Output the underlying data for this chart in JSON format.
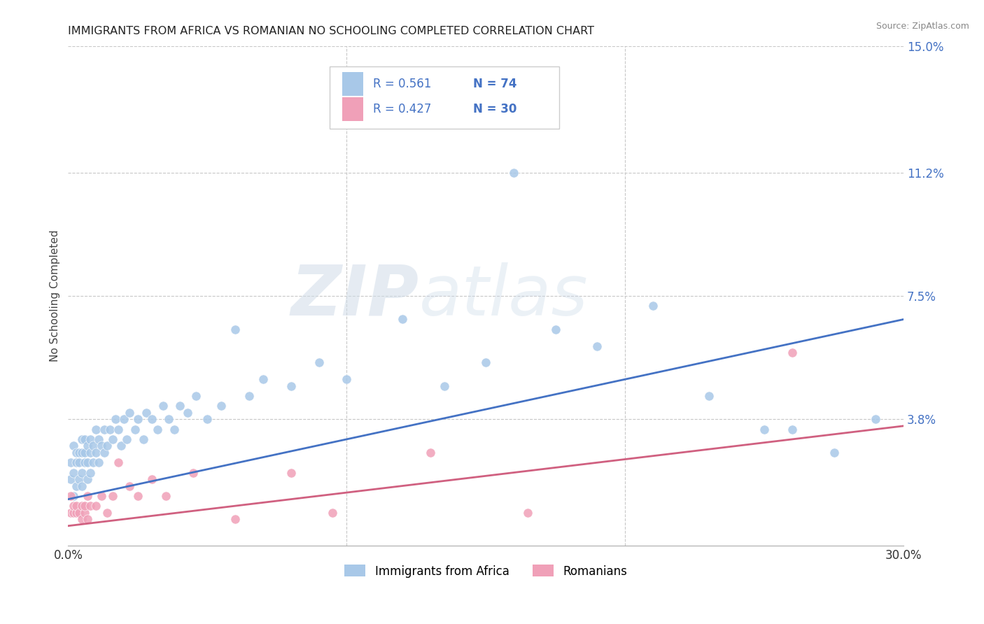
{
  "title": "IMMIGRANTS FROM AFRICA VS ROMANIAN NO SCHOOLING COMPLETED CORRELATION CHART",
  "source": "Source: ZipAtlas.com",
  "ylabel": "No Schooling Completed",
  "xlim": [
    0.0,
    0.3
  ],
  "ylim": [
    0.0,
    0.15
  ],
  "ytick_labels_right": [
    "15.0%",
    "11.2%",
    "7.5%",
    "3.8%"
  ],
  "ytick_positions_right": [
    0.15,
    0.112,
    0.075,
    0.038
  ],
  "grid_color": "#c8c8c8",
  "background_color": "#ffffff",
  "legend_r1": "R = 0.561",
  "legend_n1": "N = 74",
  "legend_r2": "R = 0.427",
  "legend_n2": "N = 30",
  "color_africa": "#a8c8e8",
  "color_romania": "#f0a0b8",
  "color_africa_line": "#4472c4",
  "color_romania_line": "#d06080",
  "color_blue": "#4472c4",
  "color_pink": "#e05878",
  "africa_x": [
    0.001,
    0.001,
    0.002,
    0.002,
    0.002,
    0.003,
    0.003,
    0.003,
    0.004,
    0.004,
    0.004,
    0.005,
    0.005,
    0.005,
    0.005,
    0.006,
    0.006,
    0.006,
    0.007,
    0.007,
    0.007,
    0.008,
    0.008,
    0.008,
    0.009,
    0.009,
    0.01,
    0.01,
    0.011,
    0.011,
    0.012,
    0.013,
    0.013,
    0.014,
    0.015,
    0.016,
    0.017,
    0.018,
    0.019,
    0.02,
    0.021,
    0.022,
    0.024,
    0.025,
    0.027,
    0.028,
    0.03,
    0.032,
    0.034,
    0.036,
    0.038,
    0.04,
    0.043,
    0.046,
    0.05,
    0.055,
    0.06,
    0.065,
    0.07,
    0.08,
    0.09,
    0.1,
    0.12,
    0.135,
    0.15,
    0.16,
    0.175,
    0.19,
    0.21,
    0.23,
    0.25,
    0.26,
    0.275,
    0.29
  ],
  "africa_y": [
    0.02,
    0.025,
    0.015,
    0.022,
    0.03,
    0.018,
    0.025,
    0.028,
    0.02,
    0.025,
    0.028,
    0.018,
    0.022,
    0.028,
    0.032,
    0.025,
    0.028,
    0.032,
    0.02,
    0.025,
    0.03,
    0.022,
    0.028,
    0.032,
    0.025,
    0.03,
    0.028,
    0.035,
    0.025,
    0.032,
    0.03,
    0.028,
    0.035,
    0.03,
    0.035,
    0.032,
    0.038,
    0.035,
    0.03,
    0.038,
    0.032,
    0.04,
    0.035,
    0.038,
    0.032,
    0.04,
    0.038,
    0.035,
    0.042,
    0.038,
    0.035,
    0.042,
    0.04,
    0.045,
    0.038,
    0.042,
    0.065,
    0.045,
    0.05,
    0.048,
    0.055,
    0.05,
    0.068,
    0.048,
    0.055,
    0.112,
    0.065,
    0.06,
    0.072,
    0.045,
    0.035,
    0.035,
    0.028,
    0.038
  ],
  "romania_x": [
    0.001,
    0.001,
    0.002,
    0.002,
    0.003,
    0.003,
    0.004,
    0.005,
    0.005,
    0.006,
    0.006,
    0.007,
    0.007,
    0.008,
    0.01,
    0.012,
    0.014,
    0.016,
    0.018,
    0.022,
    0.025,
    0.03,
    0.035,
    0.045,
    0.06,
    0.08,
    0.095,
    0.13,
    0.165,
    0.26
  ],
  "romania_y": [
    0.01,
    0.015,
    0.01,
    0.012,
    0.01,
    0.012,
    0.01,
    0.008,
    0.012,
    0.01,
    0.012,
    0.015,
    0.008,
    0.012,
    0.012,
    0.015,
    0.01,
    0.015,
    0.025,
    0.018,
    0.015,
    0.02,
    0.015,
    0.022,
    0.008,
    0.022,
    0.01,
    0.028,
    0.01,
    0.058
  ],
  "africa_line_x": [
    0.0,
    0.3
  ],
  "africa_line_y": [
    0.014,
    0.068
  ],
  "romania_line_x": [
    0.0,
    0.3
  ],
  "romania_line_y": [
    0.006,
    0.036
  ]
}
